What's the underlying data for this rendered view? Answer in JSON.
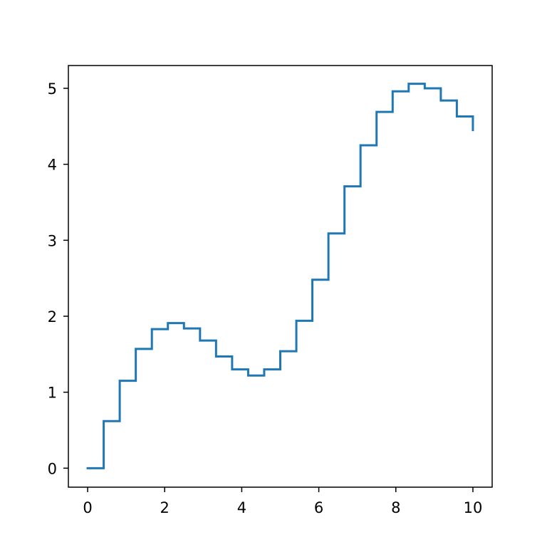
{
  "chart_data": {
    "type": "line",
    "step": "post",
    "title": "",
    "xlabel": "",
    "ylabel": "",
    "xlim": [
      -0.5,
      10.5
    ],
    "ylim": [
      -0.25,
      5.3
    ],
    "xticks": [
      0,
      2,
      4,
      6,
      8,
      10
    ],
    "yticks": [
      0,
      1,
      2,
      3,
      4,
      5
    ],
    "grid": false,
    "legend": "none",
    "color": "#1f77b4",
    "series": [
      {
        "x": [
          0,
          0.417,
          0.833,
          1.25,
          1.667,
          2.083,
          2.5,
          2.917,
          3.333,
          3.75,
          4.167,
          4.583,
          5.0,
          5.417,
          5.833,
          6.25,
          6.667,
          7.083,
          7.5,
          7.917,
          8.333,
          8.75,
          9.167,
          9.583,
          10.0
        ],
        "y": [
          0.0,
          0.62,
          1.15,
          1.57,
          1.83,
          1.91,
          1.84,
          1.68,
          1.47,
          1.3,
          1.22,
          1.3,
          1.54,
          1.94,
          2.48,
          3.09,
          3.71,
          4.25,
          4.69,
          4.96,
          5.06,
          5.0,
          4.84,
          4.63,
          4.45
        ]
      }
    ]
  }
}
